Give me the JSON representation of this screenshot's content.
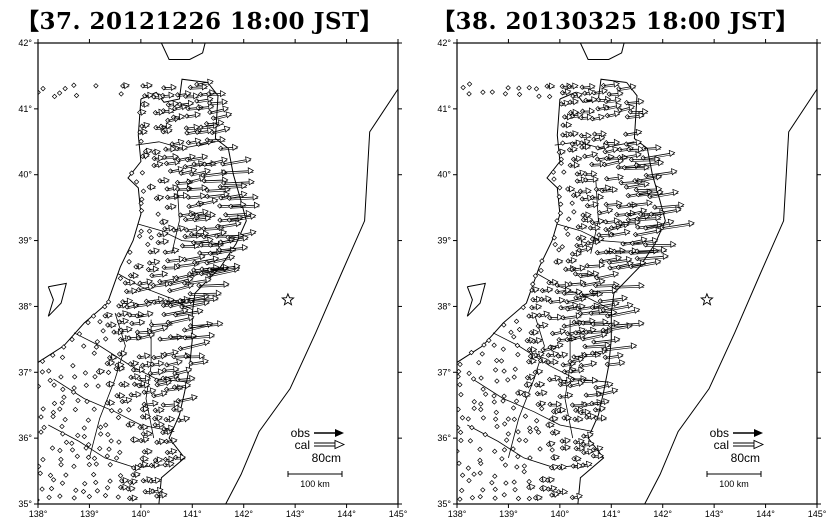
{
  "maps": [
    {
      "title": "【37. 20121226 18:00 JST】",
      "lat_labels": [
        "42°",
        "41°",
        "40°",
        "39°",
        "38°",
        "37°",
        "36°",
        "35°"
      ],
      "lon_labels": [
        "138°",
        "139°",
        "140°",
        "141°",
        "142°",
        "143°",
        "144°",
        "145°"
      ],
      "legend": {
        "obs": "obs",
        "cal": "cal",
        "scale": "80cm",
        "distance": "100 km"
      }
    },
    {
      "title": "【38. 20130325 18:00 JST】",
      "lat_labels": [
        "42°",
        "41°",
        "40°",
        "39°",
        "38°",
        "37°",
        "36°",
        "35°"
      ],
      "lon_labels": [
        "138°",
        "139°",
        "140°",
        "141°",
        "142°",
        "143°",
        "144°",
        "145°"
      ],
      "legend": {
        "obs": "obs",
        "cal": "cal",
        "scale": "80cm",
        "distance": "100 km"
      }
    }
  ],
  "epicenter": {
    "lon": 142.86,
    "lat": 38.1
  },
  "lon_range": [
    138,
    145
  ],
  "lat_range": [
    35,
    42
  ]
}
